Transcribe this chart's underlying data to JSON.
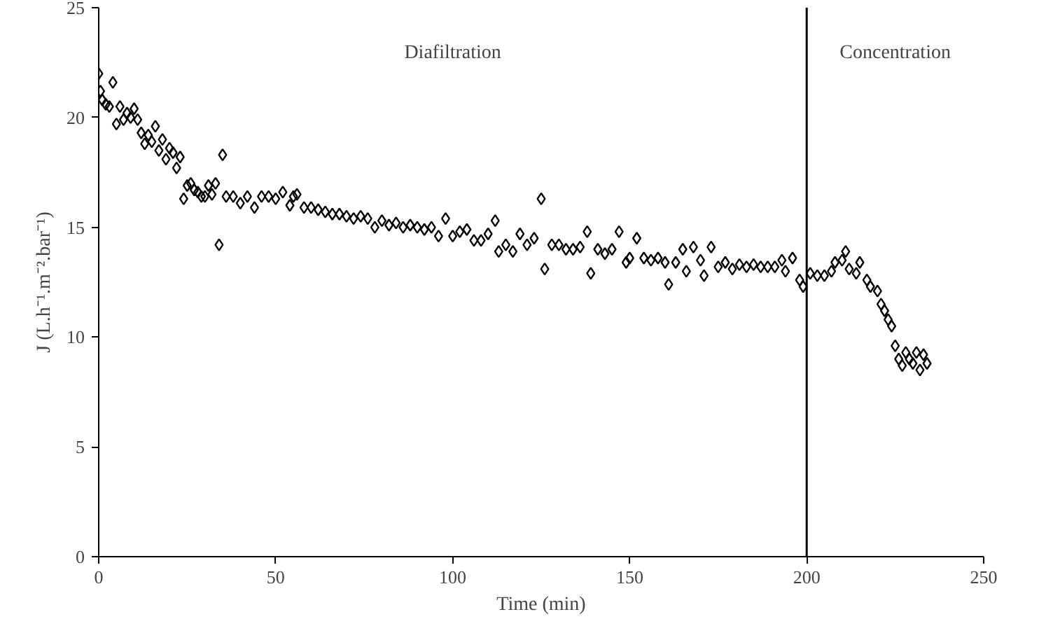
{
  "chart_data": {
    "type": "scatter",
    "xlabel": "Time (min)",
    "ylabel": "J (L.h⁻¹.m⁻².bar⁻¹)",
    "xlim": [
      0,
      250
    ],
    "ylim": [
      0,
      25
    ],
    "xticks": [
      0,
      50,
      100,
      150,
      200,
      250
    ],
    "yticks": [
      0,
      5,
      10,
      15,
      20,
      25
    ],
    "grid": false,
    "marker": "diamond",
    "ref_lines": [
      {
        "axis": "x",
        "value": 200,
        "color": "#000000"
      }
    ],
    "annotations": [
      "Diafiltration",
      "Concentration"
    ],
    "series": [
      {
        "color": "#000000",
        "x": [
          0,
          0.5,
          1,
          2,
          3,
          4,
          5,
          6,
          7,
          8,
          9,
          10,
          11,
          12,
          13,
          14,
          15,
          16,
          17,
          18,
          19,
          20,
          21,
          22,
          23,
          24,
          25,
          26,
          27,
          28,
          29,
          30,
          31,
          32,
          33,
          34,
          35,
          36,
          38,
          40,
          42,
          44,
          46,
          48,
          50,
          52,
          54,
          55,
          56,
          58,
          60,
          62,
          64,
          66,
          68,
          70,
          72,
          74,
          76,
          78,
          80,
          82,
          84,
          86,
          88,
          90,
          92,
          94,
          96,
          98,
          100,
          102,
          104,
          106,
          108,
          110,
          112,
          113,
          115,
          117,
          119,
          121,
          123,
          125,
          126,
          128,
          130,
          132,
          134,
          136,
          138,
          139,
          141,
          143,
          145,
          147,
          149,
          150,
          152,
          154,
          156,
          158,
          160,
          161,
          163,
          165,
          166,
          168,
          170,
          171,
          173,
          175,
          177,
          179,
          181,
          183,
          185,
          187,
          189,
          191,
          193,
          194,
          196,
          198,
          199,
          201,
          203,
          205,
          207,
          208,
          210,
          211,
          212,
          214,
          215,
          217,
          218,
          220,
          221,
          222,
          223,
          224,
          225,
          226,
          227,
          228,
          229,
          230,
          231,
          232,
          233,
          234
        ],
        "values": [
          22.0,
          21.2,
          20.8,
          20.6,
          20.5,
          21.6,
          19.7,
          20.5,
          19.9,
          20.2,
          20.0,
          20.4,
          19.9,
          19.3,
          18.8,
          19.2,
          18.9,
          19.6,
          18.5,
          19.0,
          18.1,
          18.6,
          18.4,
          17.7,
          18.2,
          16.3,
          16.9,
          17.0,
          16.7,
          16.6,
          16.4,
          16.4,
          16.9,
          16.5,
          17.0,
          14.2,
          18.3,
          16.4,
          16.4,
          16.1,
          16.4,
          15.9,
          16.4,
          16.4,
          16.3,
          16.6,
          16.0,
          16.4,
          16.5,
          15.9,
          15.9,
          15.8,
          15.7,
          15.6,
          15.6,
          15.5,
          15.4,
          15.5,
          15.4,
          15.0,
          15.3,
          15.1,
          15.2,
          15.0,
          15.1,
          15.0,
          14.9,
          15.0,
          14.6,
          15.4,
          14.6,
          14.8,
          14.9,
          14.4,
          14.4,
          14.7,
          15.3,
          13.9,
          14.2,
          13.9,
          14.7,
          14.2,
          14.5,
          16.3,
          13.1,
          14.2,
          14.2,
          14.0,
          14.0,
          14.1,
          14.8,
          12.9,
          14.0,
          13.8,
          14.0,
          14.8,
          13.4,
          13.6,
          14.5,
          13.6,
          13.5,
          13.6,
          13.4,
          12.4,
          13.4,
          14.0,
          13.0,
          14.1,
          13.5,
          12.8,
          14.1,
          13.2,
          13.4,
          13.1,
          13.3,
          13.2,
          13.3,
          13.2,
          13.2,
          13.2,
          13.5,
          13.0,
          13.6,
          12.6,
          12.3,
          12.9,
          12.8,
          12.8,
          13.0,
          13.4,
          13.5,
          13.9,
          13.1,
          12.9,
          13.4,
          12.6,
          12.3,
          12.1,
          11.5,
          11.2,
          10.8,
          10.5,
          9.6,
          9.0,
          8.7,
          9.3,
          9.0,
          8.8,
          9.3,
          8.5,
          9.2,
          8.8
        ]
      }
    ]
  }
}
